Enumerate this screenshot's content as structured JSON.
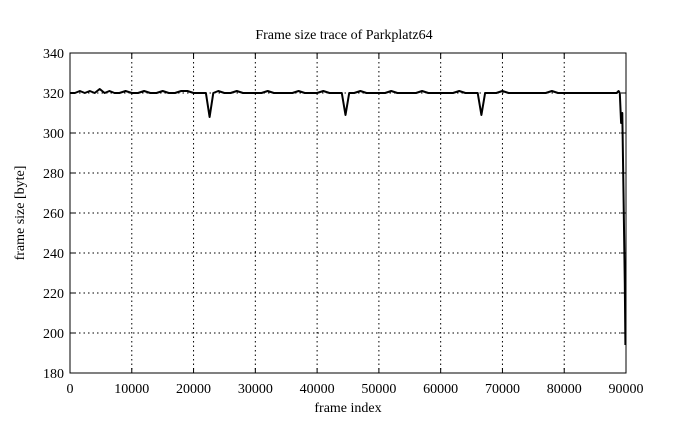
{
  "chart_data": {
    "type": "line",
    "title": "Frame size trace of Parkplatz64",
    "xlabel": "frame index",
    "ylabel": "frame size [byte]",
    "xlim": [
      0,
      90000
    ],
    "ylim": [
      180,
      340
    ],
    "xticks": [
      0,
      10000,
      20000,
      30000,
      40000,
      50000,
      60000,
      70000,
      80000,
      90000
    ],
    "xtick_labels": [
      "0",
      "10000",
      "20000",
      "30000",
      "40000",
      "50000",
      "60000",
      "70000",
      "80000",
      "90000"
    ],
    "yticks": [
      180,
      200,
      220,
      240,
      260,
      280,
      300,
      320,
      340
    ],
    "ytick_labels": [
      "180",
      "200",
      "220",
      "240",
      "260",
      "280",
      "300",
      "320",
      "340"
    ],
    "grid": true,
    "legend": "none",
    "series": [
      {
        "x": [
          0,
          800,
          1600,
          2400,
          3200,
          4000,
          4800,
          5600,
          6400,
          7200,
          8000,
          9000,
          10000,
          11000,
          12000,
          13000,
          14000,
          15000,
          16000,
          17000,
          18000,
          19000,
          20000,
          21000,
          22000,
          22600,
          23200,
          24000,
          25000,
          26000,
          27000,
          28000,
          29000,
          30000,
          31000,
          32000,
          33000,
          34000,
          35000,
          36000,
          37000,
          38000,
          39000,
          40000,
          41000,
          42000,
          43000,
          44000,
          44600,
          45200,
          46000,
          47000,
          48000,
          49000,
          50000,
          51000,
          52000,
          53000,
          54000,
          55000,
          56000,
          57000,
          58000,
          59000,
          60000,
          61000,
          62000,
          63000,
          64000,
          65000,
          66000,
          66600,
          67200,
          68000,
          69000,
          70000,
          71000,
          72000,
          73000,
          74000,
          75000,
          76000,
          77000,
          78000,
          79000,
          80000,
          81000,
          82000,
          83000,
          84000,
          85000,
          86000,
          87000,
          88000,
          88500,
          88800,
          89000,
          89200,
          89400,
          89600,
          89800,
          89900
        ],
        "y": [
          320,
          320,
          321,
          320,
          321,
          320,
          322,
          320,
          321,
          320,
          320,
          321,
          320,
          320,
          321,
          320,
          320,
          321,
          320,
          320,
          321,
          321,
          320,
          320,
          320,
          308,
          320,
          321,
          320,
          320,
          321,
          320,
          320,
          320,
          320,
          321,
          320,
          320,
          320,
          320,
          321,
          320,
          320,
          320,
          321,
          320,
          320,
          320,
          309,
          320,
          320,
          321,
          320,
          320,
          320,
          320,
          321,
          320,
          320,
          320,
          320,
          321,
          320,
          320,
          320,
          320,
          320,
          321,
          320,
          320,
          320,
          309,
          320,
          320,
          320,
          321,
          320,
          320,
          320,
          320,
          320,
          320,
          320,
          321,
          320,
          320,
          320,
          320,
          320,
          320,
          320,
          320,
          320,
          320,
          320,
          321,
          320,
          305,
          310,
          270,
          225,
          194
        ]
      }
    ]
  }
}
